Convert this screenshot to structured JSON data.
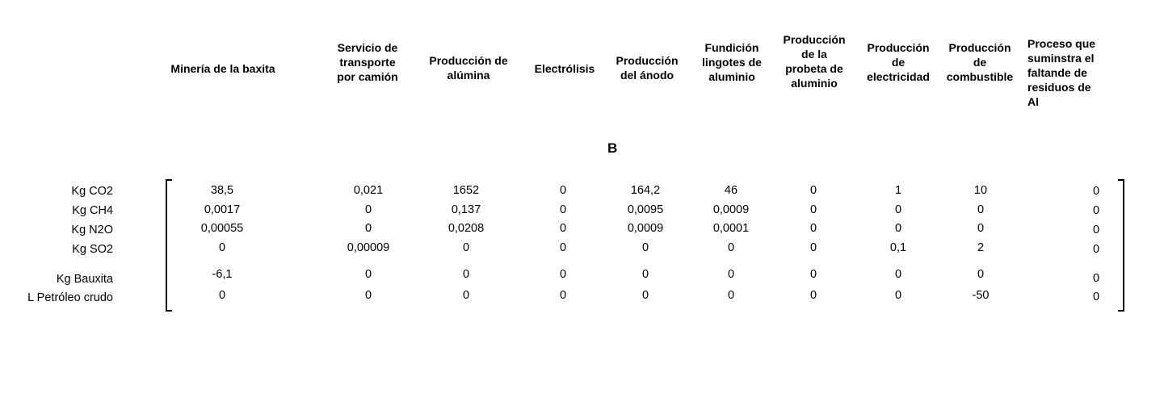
{
  "matrix_label": "B",
  "columns": [
    "Minería de la baxita",
    "Servicio de\ntransporte\npor camión",
    "Producción de\nalúmina",
    "Electrólisis",
    "Producción\ndel ánodo",
    "Fundición\nlingotes de\naluminio",
    "Producción\nde la\nprobeta de\naluminio",
    "Producción\nde\nelectricidad",
    "Producción\nde\ncombustible",
    "Proceso que\nsuminstra el\nfaltande de\nresiduos de\nAl"
  ],
  "rows": [
    {
      "label": "Kg CO2",
      "values": [
        "38,5",
        "0,021",
        "1652",
        "0",
        "164,2",
        "46",
        "0",
        "1",
        "10",
        "0"
      ]
    },
    {
      "label": "Kg CH4",
      "values": [
        "0,0017",
        "0",
        "0,137",
        "0",
        "0,0095",
        "0,0009",
        "0",
        "0",
        "0",
        "0"
      ]
    },
    {
      "label": "Kg N2O",
      "values": [
        "0,00055",
        "0",
        "0,0208",
        "0",
        "0,0009",
        "0,0001",
        "0",
        "0",
        "0",
        "0"
      ]
    },
    {
      "label": "Kg SO2",
      "values": [
        "0",
        "0,00009",
        "0",
        "0",
        "0",
        "0",
        "0",
        "0,1",
        "2",
        "0"
      ]
    },
    {
      "label": "Kg Bauxita",
      "values": [
        "-6,1",
        "0",
        "0",
        "0",
        "0",
        "0",
        "0",
        "0",
        "0",
        "0"
      ]
    },
    {
      "label": "L Petróleo crudo",
      "values": [
        "0",
        "0",
        "0",
        "0",
        "0",
        "0",
        "0",
        "0",
        "-50",
        "0"
      ]
    }
  ]
}
